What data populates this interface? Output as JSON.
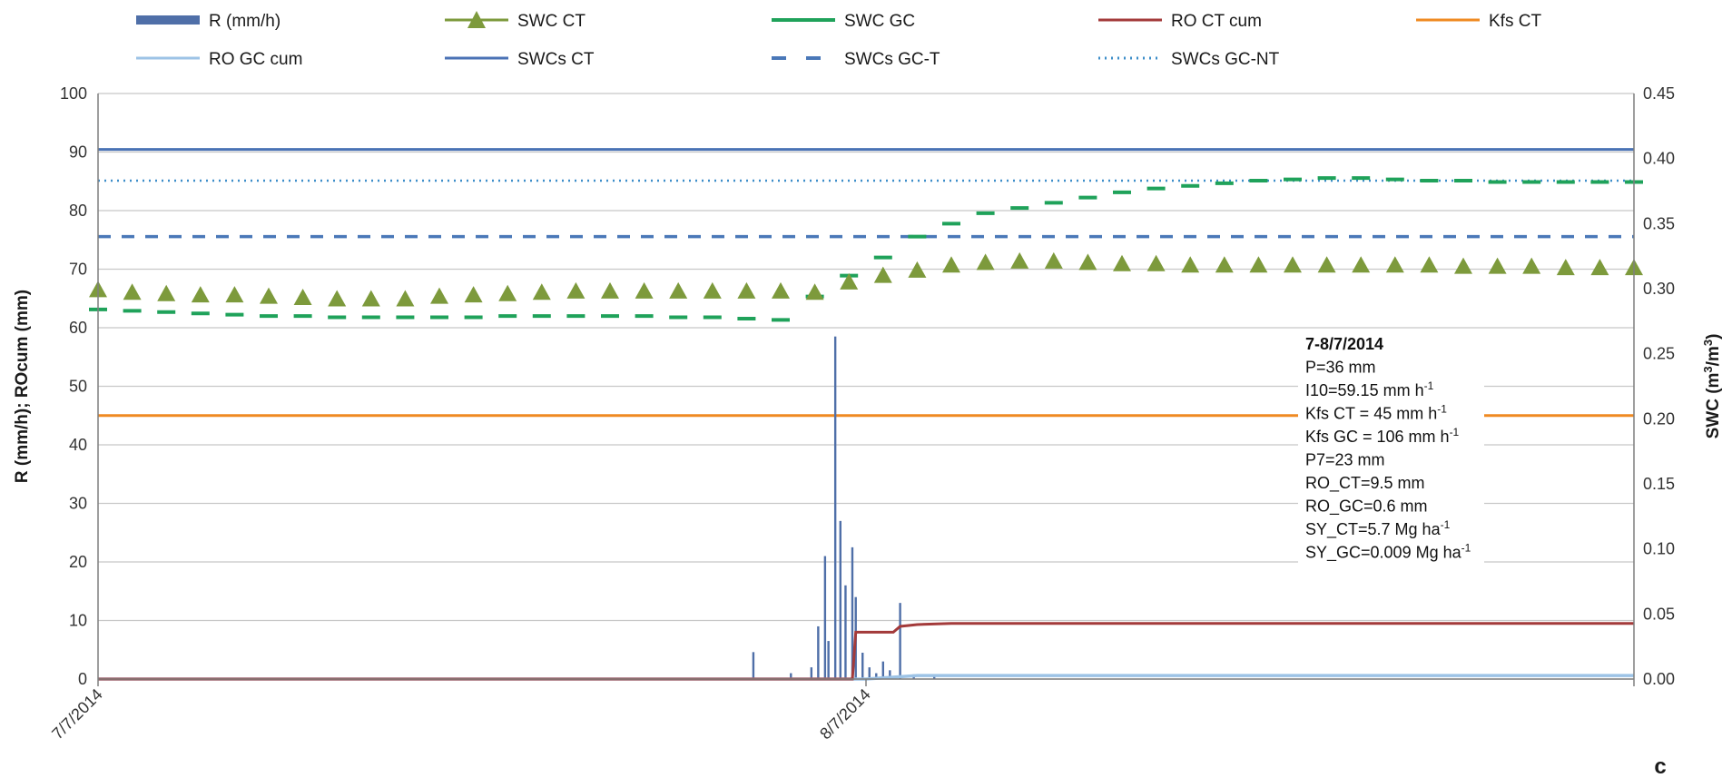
{
  "chart_data": {
    "type": "line",
    "panel_label": "c",
    "x_ticks": [
      "7/7/2014",
      "8/7/2014"
    ],
    "y_left": {
      "label": "R (mm/h); ROcum (mm)",
      "range": [
        0,
        100
      ],
      "ticks": [
        "0",
        "10",
        "20",
        "30",
        "40",
        "50",
        "60",
        "70",
        "80",
        "90",
        "100"
      ]
    },
    "y_right": {
      "label": "SWC (m³/m³)",
      "range": [
        0,
        0.45
      ],
      "ticks": [
        "0.00",
        "0.05",
        "0.10",
        "0.15",
        "0.20",
        "0.25",
        "0.30",
        "0.35",
        "0.40",
        "0.45"
      ]
    },
    "grid": true,
    "legend": {
      "placement": "top",
      "entries": [
        "R (mm/h)",
        "SWC CT",
        "SWC  GC",
        "RO CT cum",
        "Kfs CT",
        "RO GC cum",
        "SWCs CT",
        "SWCs GC-T",
        "SWCs GC-NT"
      ]
    },
    "colors": {
      "rain": "#4f6fa8",
      "swc_ct": "#7d9a3c",
      "swc_gc": "#1fa25a",
      "ro_ct": "#a33a3a",
      "kfs": "#ef8a22",
      "ro_gc": "#9dc3e6",
      "swcs_ct": "#4a72b5",
      "swcs_gct": "#4a78b8",
      "swcs_gcnt": "#3d8ec9",
      "grid": "#c8c8c8"
    },
    "x_domain_hours": [
      0,
      45
    ],
    "series": [
      {
        "name": "R (mm/h)",
        "axis": "left",
        "style": "bars",
        "x": [
          19.2,
          20.3,
          20.9,
          21.1,
          21.3,
          21.4,
          21.6,
          21.75,
          21.9,
          22.1,
          22.2,
          22.4,
          22.6,
          22.8,
          23.0,
          23.2,
          23.5,
          23.9,
          24.5
        ],
        "values": [
          4.6,
          1.0,
          2.0,
          9.0,
          21.0,
          6.5,
          58.5,
          27.0,
          16.0,
          22.5,
          14.0,
          4.5,
          2.0,
          1.0,
          3.0,
          1.5,
          13.0,
          0.8,
          0.6
        ]
      },
      {
        "name": "SWC CT",
        "axis": "right",
        "style": "triangles",
        "x": [
          0,
          1,
          2,
          3,
          4,
          5,
          6,
          7,
          8,
          9,
          10,
          11,
          12,
          13,
          14,
          15,
          16,
          17,
          18,
          19,
          20,
          21,
          22,
          23,
          24,
          25,
          26,
          27,
          28,
          29,
          30,
          31,
          32,
          33,
          34,
          35,
          36,
          37,
          38,
          39,
          40,
          41,
          42,
          43,
          44,
          45
        ],
        "values": [
          0.299,
          0.297,
          0.296,
          0.295,
          0.295,
          0.294,
          0.293,
          0.292,
          0.292,
          0.292,
          0.294,
          0.295,
          0.296,
          0.297,
          0.298,
          0.298,
          0.298,
          0.298,
          0.298,
          0.298,
          0.298,
          0.297,
          0.305,
          0.31,
          0.314,
          0.318,
          0.32,
          0.321,
          0.321,
          0.32,
          0.319,
          0.319,
          0.318,
          0.318,
          0.318,
          0.318,
          0.318,
          0.318,
          0.318,
          0.318,
          0.317,
          0.317,
          0.317,
          0.316,
          0.316,
          0.316
        ]
      },
      {
        "name": "SWC  GC",
        "axis": "right",
        "style": "dashes",
        "x": [
          0,
          1,
          2,
          3,
          4,
          5,
          6,
          7,
          8,
          9,
          10,
          11,
          12,
          13,
          14,
          15,
          16,
          17,
          18,
          19,
          20,
          21,
          22,
          23,
          24,
          25,
          26,
          27,
          28,
          29,
          30,
          31,
          32,
          33,
          34,
          35,
          36,
          37,
          38,
          39,
          40,
          41,
          42,
          43,
          44,
          45
        ],
        "values": [
          0.284,
          0.283,
          0.282,
          0.281,
          0.28,
          0.279,
          0.279,
          0.278,
          0.278,
          0.278,
          0.278,
          0.278,
          0.279,
          0.279,
          0.279,
          0.279,
          0.279,
          0.278,
          0.278,
          0.277,
          0.276,
          0.294,
          0.31,
          0.324,
          0.34,
          0.35,
          0.358,
          0.362,
          0.366,
          0.37,
          0.374,
          0.377,
          0.379,
          0.381,
          0.383,
          0.384,
          0.385,
          0.385,
          0.384,
          0.383,
          0.383,
          0.382,
          0.382,
          0.382,
          0.382,
          0.382
        ]
      },
      {
        "name": "RO CT cum",
        "axis": "left",
        "style": "line",
        "x": [
          0,
          21.8,
          22.1,
          22.2,
          23.3,
          23.5,
          24.0,
          25.0,
          45.0
        ],
        "values": [
          0,
          0,
          0,
          8.0,
          8.0,
          9.0,
          9.3,
          9.5,
          9.5
        ]
      },
      {
        "name": "Kfs CT",
        "axis": "left",
        "style": "line",
        "x": [
          0,
          45
        ],
        "values": [
          45,
          45
        ]
      },
      {
        "name": "RO GC cum",
        "axis": "left",
        "style": "line",
        "x": [
          0,
          22.5,
          24.0,
          45.0
        ],
        "values": [
          0,
          0,
          0.6,
          0.6
        ]
      },
      {
        "name": "SWCs CT",
        "axis": "right",
        "style": "line",
        "x": [
          0,
          45
        ],
        "values": [
          0.407,
          0.407
        ]
      },
      {
        "name": "SWCs GC-T",
        "axis": "right",
        "style": "dashed",
        "x": [
          0,
          45
        ],
        "values": [
          0.34,
          0.34
        ]
      },
      {
        "name": "SWCs GC-NT",
        "axis": "right",
        "style": "dotted",
        "x": [
          0,
          45
        ],
        "values": [
          0.383,
          0.383
        ]
      }
    ],
    "annotation": {
      "title": "7-8/7/2014",
      "lines": [
        {
          "text": "P=36 mm",
          "sup": ""
        },
        {
          "text": "I10=59.15 mm h",
          "sup": "-1"
        },
        {
          "text": "Kfs CT = 45 mm h",
          "sup": "-1"
        },
        {
          "text": "Kfs GC = 106 mm h",
          "sup": "-1"
        },
        {
          "text": "P7=23 mm",
          "sup": ""
        },
        {
          "text": "RO_CT=9.5 mm",
          "sup": ""
        },
        {
          "text": "RO_GC=0.6 mm",
          "sup": ""
        },
        {
          "text": "SY_CT=5.7 Mg ha",
          "sup": "-1"
        },
        {
          "text": "SY_GC=0.009 Mg ha",
          "sup": "-1"
        }
      ]
    }
  }
}
